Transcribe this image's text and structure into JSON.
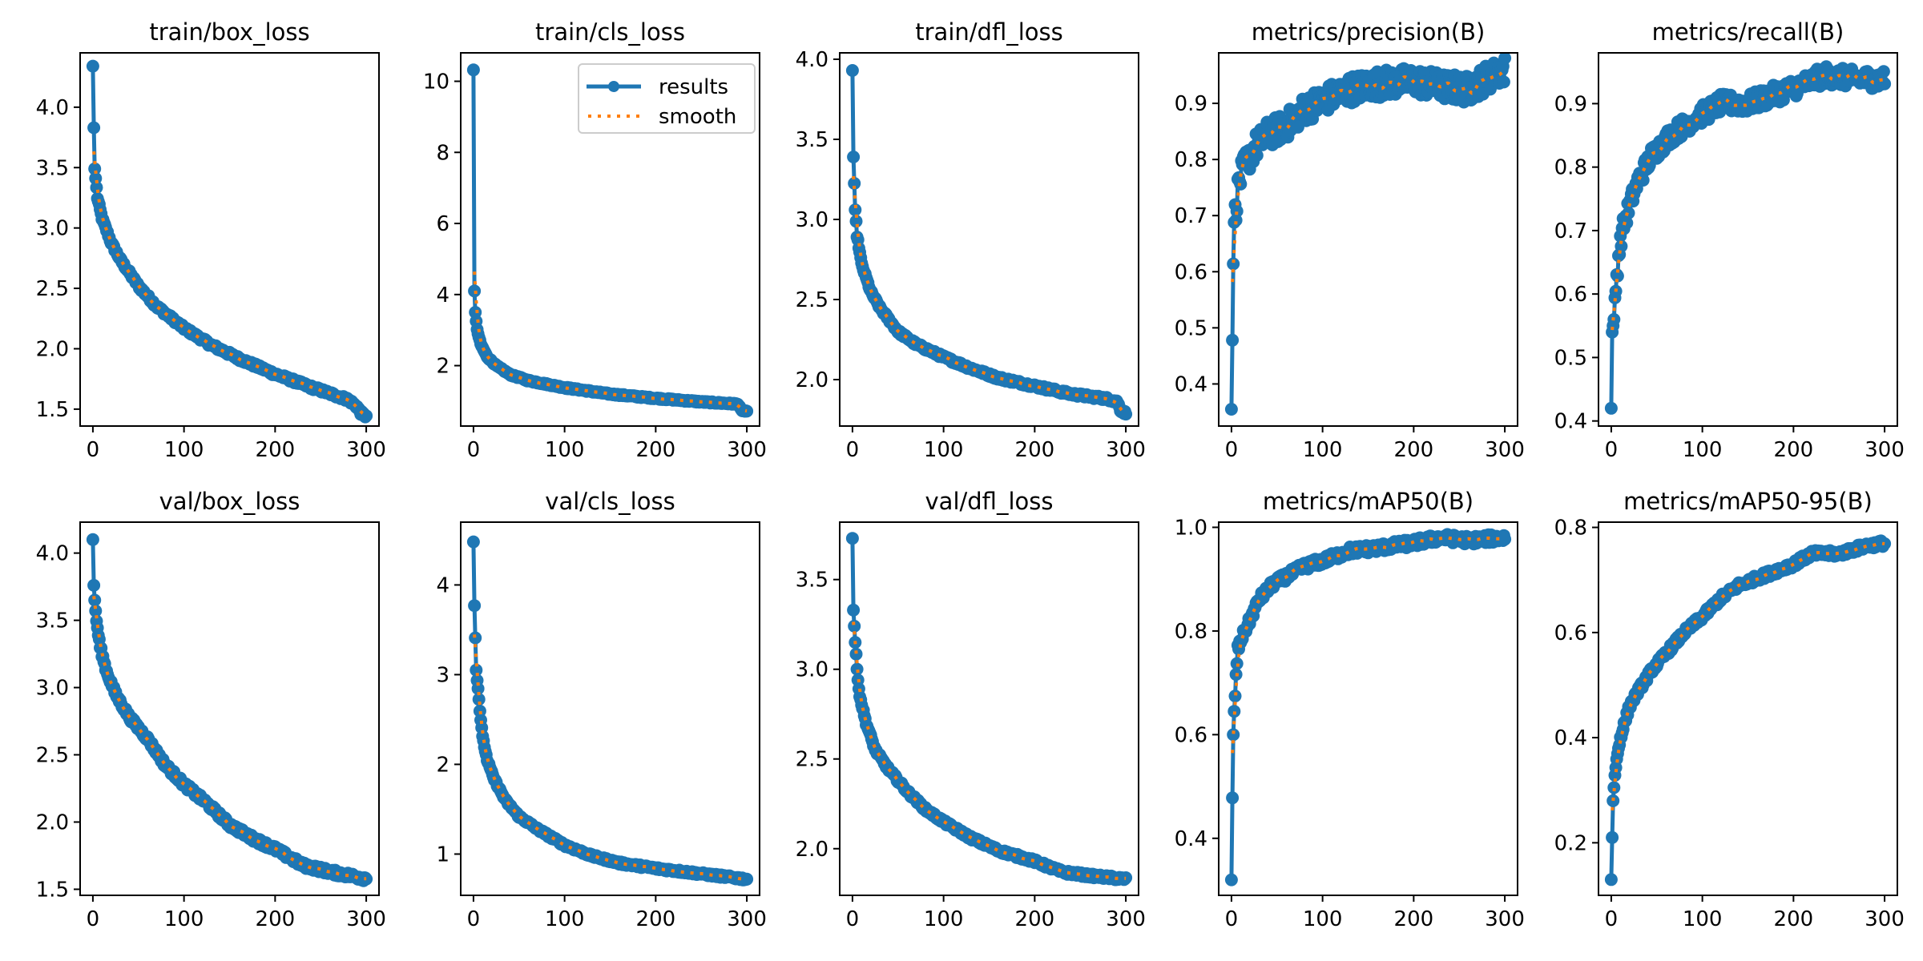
{
  "figure": {
    "legend_labels": [
      "results",
      "smooth"
    ],
    "colors": {
      "results": "#1f77b4",
      "smooth": "#ff7f0e",
      "axis": "#000000",
      "legend_border": "#cccccc"
    }
  },
  "chart_data": [
    {
      "type": "line",
      "title": "train/box_loss",
      "xlabel": "",
      "ylabel": "",
      "xlim": [
        -14,
        314
      ],
      "ylim": [
        1.36,
        4.45
      ],
      "xticks": [
        0,
        100,
        200,
        300
      ],
      "xtick_labels": [
        "0",
        "100",
        "200",
        "300"
      ],
      "yticks": [
        1.5,
        2.0,
        2.5,
        3.0,
        3.5,
        4.0
      ],
      "ytick_labels": [
        "1.5",
        "2.0",
        "2.5",
        "3.0",
        "3.5",
        "4.0"
      ],
      "legend": false,
      "grid": false,
      "anchors": [
        [
          0,
          4.34
        ],
        [
          1,
          3.83
        ],
        [
          2,
          3.49
        ],
        [
          5,
          3.25
        ],
        [
          10,
          3.08
        ],
        [
          20,
          2.88
        ],
        [
          30,
          2.74
        ],
        [
          50,
          2.52
        ],
        [
          70,
          2.35
        ],
        [
          100,
          2.17
        ],
        [
          130,
          2.03
        ],
        [
          160,
          1.92
        ],
        [
          200,
          1.79
        ],
        [
          240,
          1.68
        ],
        [
          280,
          1.58
        ],
        [
          290,
          1.52
        ],
        [
          294,
          1.47
        ],
        [
          300,
          1.44
        ]
      ],
      "noise": 0.015
    },
    {
      "type": "line",
      "title": "train/cls_loss",
      "xlabel": "",
      "ylabel": "",
      "xlim": [
        -14,
        314
      ],
      "ylim": [
        0.3,
        10.8
      ],
      "xticks": [
        0,
        100,
        200,
        300
      ],
      "xtick_labels": [
        "0",
        "100",
        "200",
        "300"
      ],
      "yticks": [
        2,
        4,
        6,
        8,
        10
      ],
      "ytick_labels": [
        "2",
        "4",
        "6",
        "8",
        "10"
      ],
      "legend": true,
      "legend_position": "upper-right",
      "grid": false,
      "anchors": [
        [
          0,
          10.32
        ],
        [
          1,
          4.1
        ],
        [
          2,
          3.5
        ],
        [
          4,
          3.0
        ],
        [
          8,
          2.6
        ],
        [
          15,
          2.25
        ],
        [
          25,
          2.0
        ],
        [
          40,
          1.75
        ],
        [
          60,
          1.58
        ],
        [
          100,
          1.38
        ],
        [
          150,
          1.2
        ],
        [
          200,
          1.08
        ],
        [
          250,
          0.98
        ],
        [
          290,
          0.92
        ],
        [
          294,
          0.75
        ],
        [
          300,
          0.7
        ]
      ],
      "noise": 0.02
    },
    {
      "type": "line",
      "title": "train/dfl_loss",
      "xlabel": "",
      "ylabel": "",
      "xlim": [
        -14,
        314
      ],
      "ylim": [
        1.71,
        4.04
      ],
      "xticks": [
        0,
        100,
        200,
        300
      ],
      "xtick_labels": [
        "0",
        "100",
        "200",
        "300"
      ],
      "yticks": [
        2.0,
        2.5,
        3.0,
        3.5,
        4.0
      ],
      "ytick_labels": [
        "2.0",
        "2.5",
        "3.0",
        "3.5",
        "4.0"
      ],
      "legend": false,
      "grid": false,
      "anchors": [
        [
          0,
          3.93
        ],
        [
          1,
          3.39
        ],
        [
          3,
          3.06
        ],
        [
          5,
          2.9
        ],
        [
          10,
          2.72
        ],
        [
          20,
          2.55
        ],
        [
          30,
          2.45
        ],
        [
          50,
          2.3
        ],
        [
          70,
          2.22
        ],
        [
          100,
          2.14
        ],
        [
          130,
          2.07
        ],
        [
          160,
          2.01
        ],
        [
          200,
          1.96
        ],
        [
          240,
          1.91
        ],
        [
          280,
          1.88
        ],
        [
          291,
          1.86
        ],
        [
          294,
          1.81
        ],
        [
          300,
          1.79
        ]
      ],
      "noise": 0.01
    },
    {
      "type": "line",
      "title": "metrics/precision(B)",
      "xlabel": "",
      "ylabel": "",
      "xlim": [
        -14,
        314
      ],
      "ylim": [
        0.325,
        0.99
      ],
      "xticks": [
        0,
        100,
        200,
        300
      ],
      "xtick_labels": [
        "0",
        "100",
        "200",
        "300"
      ],
      "yticks": [
        0.4,
        0.5,
        0.6,
        0.7,
        0.8,
        0.9
      ],
      "ytick_labels": [
        "0.4",
        "0.5",
        "0.6",
        "0.7",
        "0.8",
        "0.9"
      ],
      "legend": false,
      "grid": false,
      "anchors": [
        [
          0,
          0.355
        ],
        [
          1,
          0.478
        ],
        [
          2,
          0.614
        ],
        [
          3,
          0.688
        ],
        [
          5,
          0.716
        ],
        [
          8,
          0.76
        ],
        [
          15,
          0.79
        ],
        [
          25,
          0.82
        ],
        [
          40,
          0.845
        ],
        [
          60,
          0.86
        ],
        [
          80,
          0.89
        ],
        [
          100,
          0.905
        ],
        [
          130,
          0.925
        ],
        [
          160,
          0.935
        ],
        [
          200,
          0.94
        ],
        [
          230,
          0.93
        ],
        [
          260,
          0.925
        ],
        [
          280,
          0.945
        ],
        [
          300,
          0.96
        ]
      ],
      "noise": 0.025
    },
    {
      "type": "line",
      "title": "metrics/recall(B)",
      "xlabel": "",
      "ylabel": "",
      "xlim": [
        -14,
        314
      ],
      "ylim": [
        0.392,
        0.98
      ],
      "xticks": [
        0,
        100,
        200,
        300
      ],
      "xtick_labels": [
        "0",
        "100",
        "200",
        "300"
      ],
      "yticks": [
        0.4,
        0.5,
        0.6,
        0.7,
        0.8,
        0.9
      ],
      "ytick_labels": [
        "0.4",
        "0.5",
        "0.6",
        "0.7",
        "0.8",
        "0.9"
      ],
      "legend": false,
      "grid": false,
      "anchors": [
        [
          0,
          0.42
        ],
        [
          1,
          0.54
        ],
        [
          3,
          0.56
        ],
        [
          5,
          0.61
        ],
        [
          8,
          0.66
        ],
        [
          12,
          0.7
        ],
        [
          20,
          0.74
        ],
        [
          30,
          0.78
        ],
        [
          45,
          0.82
        ],
        [
          65,
          0.85
        ],
        [
          90,
          0.875
        ],
        [
          120,
          0.9
        ],
        [
          150,
          0.9
        ],
        [
          180,
          0.915
        ],
        [
          210,
          0.93
        ],
        [
          235,
          0.945
        ],
        [
          260,
          0.94
        ],
        [
          300,
          0.938
        ]
      ],
      "noise": 0.015
    },
    {
      "type": "line",
      "title": "val/box_loss",
      "xlabel": "",
      "ylabel": "",
      "xlim": [
        -14,
        314
      ],
      "ylim": [
        1.455,
        4.23
      ],
      "xticks": [
        0,
        100,
        200,
        300
      ],
      "xtick_labels": [
        "0",
        "100",
        "200",
        "300"
      ],
      "yticks": [
        1.5,
        2.0,
        2.5,
        3.0,
        3.5,
        4.0
      ],
      "ytick_labels": [
        "1.5",
        "2.0",
        "2.5",
        "3.0",
        "3.5",
        "4.0"
      ],
      "legend": false,
      "grid": false,
      "anchors": [
        [
          0,
          4.1
        ],
        [
          1,
          3.76
        ],
        [
          2,
          3.65
        ],
        [
          4,
          3.49
        ],
        [
          8,
          3.3
        ],
        [
          15,
          3.12
        ],
        [
          25,
          2.95
        ],
        [
          40,
          2.78
        ],
        [
          60,
          2.62
        ],
        [
          80,
          2.42
        ],
        [
          100,
          2.28
        ],
        [
          125,
          2.14
        ],
        [
          150,
          1.98
        ],
        [
          175,
          1.88
        ],
        [
          200,
          1.8
        ],
        [
          230,
          1.68
        ],
        [
          260,
          1.63
        ],
        [
          300,
          1.58
        ]
      ],
      "noise": 0.02
    },
    {
      "type": "line",
      "title": "val/cls_loss",
      "xlabel": "",
      "ylabel": "",
      "xlim": [
        -14,
        314
      ],
      "ylim": [
        0.54,
        4.7
      ],
      "xticks": [
        0,
        100,
        200,
        300
      ],
      "xtick_labels": [
        "0",
        "100",
        "200",
        "300"
      ],
      "yticks": [
        1,
        2,
        3,
        4
      ],
      "ytick_labels": [
        "1",
        "2",
        "3",
        "4"
      ],
      "legend": false,
      "grid": false,
      "anchors": [
        [
          0,
          4.48
        ],
        [
          1,
          3.77
        ],
        [
          3,
          3.05
        ],
        [
          5,
          2.85
        ],
        [
          7,
          2.6
        ],
        [
          10,
          2.3
        ],
        [
          15,
          2.05
        ],
        [
          22,
          1.85
        ],
        [
          35,
          1.6
        ],
        [
          50,
          1.42
        ],
        [
          70,
          1.28
        ],
        [
          100,
          1.1
        ],
        [
          130,
          0.98
        ],
        [
          160,
          0.9
        ],
        [
          200,
          0.84
        ],
        [
          250,
          0.78
        ],
        [
          300,
          0.72
        ]
      ],
      "noise": 0.015
    },
    {
      "type": "line",
      "title": "val/dfl_loss",
      "xlabel": "",
      "ylabel": "",
      "xlim": [
        -14,
        314
      ],
      "ylim": [
        1.74,
        3.82
      ],
      "xticks": [
        0,
        100,
        200,
        300
      ],
      "xtick_labels": [
        "0",
        "100",
        "200",
        "300"
      ],
      "yticks": [
        2.0,
        2.5,
        3.0,
        3.5
      ],
      "ytick_labels": [
        "2.0",
        "2.5",
        "3.0",
        "3.5"
      ],
      "legend": false,
      "grid": false,
      "anchors": [
        [
          0,
          3.73
        ],
        [
          1,
          3.33
        ],
        [
          3,
          3.15
        ],
        [
          5,
          3.0
        ],
        [
          8,
          2.85
        ],
        [
          15,
          2.7
        ],
        [
          25,
          2.55
        ],
        [
          40,
          2.44
        ],
        [
          60,
          2.32
        ],
        [
          80,
          2.22
        ],
        [
          100,
          2.15
        ],
        [
          130,
          2.06
        ],
        [
          160,
          1.99
        ],
        [
          200,
          1.93
        ],
        [
          230,
          1.87
        ],
        [
          260,
          1.85
        ],
        [
          300,
          1.83
        ]
      ],
      "noise": 0.01
    },
    {
      "type": "line",
      "title": "metrics/mAP50(B)",
      "xlabel": "",
      "ylabel": "",
      "xlim": [
        -14,
        314
      ],
      "ylim": [
        0.29,
        1.01
      ],
      "xticks": [
        0,
        100,
        200,
        300
      ],
      "xtick_labels": [
        "0",
        "100",
        "200",
        "300"
      ],
      "yticks": [
        0.4,
        0.6,
        0.8,
        1.0
      ],
      "ytick_labels": [
        "0.4",
        "0.6",
        "0.8",
        "1.0"
      ],
      "legend": false,
      "grid": false,
      "anchors": [
        [
          0,
          0.32
        ],
        [
          1,
          0.478
        ],
        [
          2,
          0.6
        ],
        [
          3,
          0.645
        ],
        [
          5,
          0.713
        ],
        [
          7,
          0.765
        ],
        [
          12,
          0.79
        ],
        [
          20,
          0.82
        ],
        [
          30,
          0.86
        ],
        [
          45,
          0.89
        ],
        [
          60,
          0.905
        ],
        [
          80,
          0.925
        ],
        [
          100,
          0.935
        ],
        [
          130,
          0.955
        ],
        [
          160,
          0.96
        ],
        [
          200,
          0.97
        ],
        [
          230,
          0.98
        ],
        [
          260,
          0.975
        ],
        [
          300,
          0.98
        ]
      ],
      "noise": 0.008
    },
    {
      "type": "line",
      "title": "metrics/mAP50-95(B)",
      "xlabel": "",
      "ylabel": "",
      "xlim": [
        -14,
        314
      ],
      "ylim": [
        0.1,
        0.81
      ],
      "xticks": [
        0,
        100,
        200,
        300
      ],
      "xtick_labels": [
        "0",
        "100",
        "200",
        "300"
      ],
      "yticks": [
        0.2,
        0.4,
        0.6,
        0.8
      ],
      "ytick_labels": [
        "0.2",
        "0.4",
        "0.6",
        "0.8"
      ],
      "legend": false,
      "grid": false,
      "anchors": [
        [
          0,
          0.13
        ],
        [
          1,
          0.21
        ],
        [
          2,
          0.28
        ],
        [
          4,
          0.33
        ],
        [
          7,
          0.37
        ],
        [
          10,
          0.4
        ],
        [
          15,
          0.43
        ],
        [
          20,
          0.46
        ],
        [
          30,
          0.49
        ],
        [
          45,
          0.53
        ],
        [
          60,
          0.56
        ],
        [
          80,
          0.6
        ],
        [
          100,
          0.63
        ],
        [
          120,
          0.665
        ],
        [
          140,
          0.69
        ],
        [
          170,
          0.71
        ],
        [
          200,
          0.73
        ],
        [
          220,
          0.75
        ],
        [
          250,
          0.75
        ],
        [
          280,
          0.765
        ],
        [
          300,
          0.77
        ]
      ],
      "noise": 0.006
    }
  ]
}
